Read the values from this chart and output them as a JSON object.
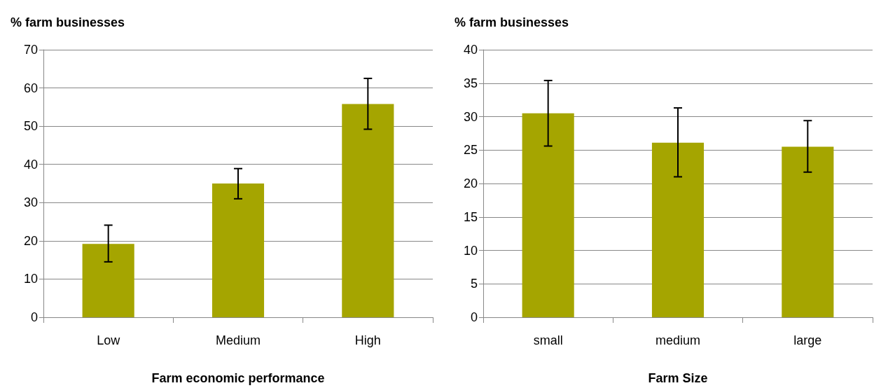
{
  "chart_data": [
    {
      "type": "bar",
      "ylabel": "% farm businesses",
      "xlabel": "Farm economic performance",
      "categories": [
        "Low",
        "Medium",
        "High"
      ],
      "values": [
        19.2,
        35,
        55.8
      ],
      "color": "#a5a500",
      "errors": [
        [
          14.5,
          24.1
        ],
        [
          31,
          38.9
        ],
        [
          49.2,
          62.5
        ]
      ],
      "ylim": [
        0,
        70
      ],
      "yticks": [
        0,
        10,
        20,
        30,
        40,
        50,
        60,
        70
      ],
      "grid": "y"
    },
    {
      "type": "bar",
      "ylabel": "% farm businesses",
      "xlabel": "Farm Size",
      "categories": [
        "small",
        "medium",
        "large"
      ],
      "values": [
        30.5,
        26.1,
        25.5
      ],
      "color": "#a5a500",
      "errors": [
        [
          25.6,
          35.4
        ],
        [
          21,
          31.3
        ],
        [
          21.7,
          29.4
        ]
      ],
      "ylim": [
        0,
        40
      ],
      "yticks": [
        0,
        5,
        10,
        15,
        20,
        25,
        30,
        35,
        40
      ],
      "grid": "y"
    }
  ]
}
